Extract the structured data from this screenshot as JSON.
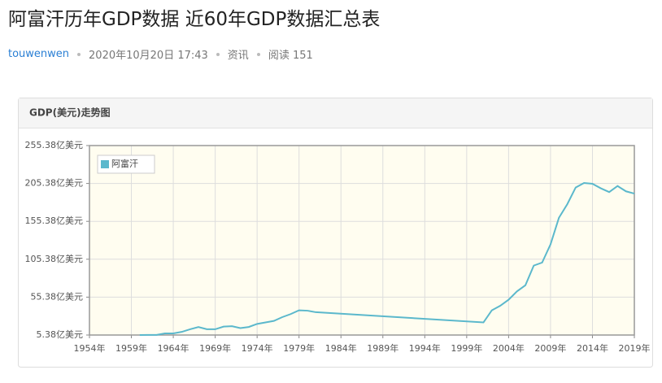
{
  "header": {
    "title": "阿富汗历年GDP数据 近60年GDP数据汇总表",
    "author": "touwenwen",
    "date": "2020年10月20日 17:43",
    "category": "资讯",
    "views": "阅读 151"
  },
  "chart_data": {
    "type": "line",
    "title": "GDP(美元)走势图",
    "x": [
      1960,
      1961,
      1962,
      1963,
      1964,
      1965,
      1966,
      1967,
      1968,
      1969,
      1970,
      1971,
      1972,
      1973,
      1974,
      1975,
      1976,
      1977,
      1978,
      1979,
      1980,
      1981,
      2001,
      2002,
      2003,
      2004,
      2005,
      2006,
      2007,
      2008,
      2009,
      2010,
      2011,
      2012,
      2013,
      2014,
      2015,
      2016,
      2017,
      2018,
      2019
    ],
    "series": [
      {
        "name": "阿富汗",
        "color": "#5bb8cc",
        "values": [
          5.4,
          5.5,
          5.5,
          7.5,
          7.5,
          9.5,
          13,
          16,
          13,
          13,
          16.5,
          17,
          14.5,
          16,
          20,
          22,
          24,
          29,
          33,
          38,
          37.5,
          35.5,
          22,
          38,
          44,
          52,
          63,
          71,
          97,
          101,
          125,
          160,
          178,
          200,
          206,
          205,
          199,
          194,
          202,
          195,
          192
        ]
      }
    ],
    "xlim": [
      1954,
      2019
    ],
    "xticks": [
      {
        "value": 1954,
        "label": "1954年"
      },
      {
        "value": 1959,
        "label": "1959年"
      },
      {
        "value": 1964,
        "label": "1964年"
      },
      {
        "value": 1969,
        "label": "1969年"
      },
      {
        "value": 1974,
        "label": "1974年"
      },
      {
        "value": 1979,
        "label": "1979年"
      },
      {
        "value": 1984,
        "label": "1984年"
      },
      {
        "value": 1989,
        "label": "1989年"
      },
      {
        "value": 1994,
        "label": "1994年"
      },
      {
        "value": 1999,
        "label": "1999年"
      },
      {
        "value": 2004,
        "label": "2004年"
      },
      {
        "value": 2009,
        "label": "2009年"
      },
      {
        "value": 2014,
        "label": "2014年"
      },
      {
        "value": 2019,
        "label": "2019年"
      }
    ],
    "ylim": [
      5.38,
      255.38
    ],
    "yticks": [
      {
        "value": 5.38,
        "label": "5.38亿美元"
      },
      {
        "value": 55.38,
        "label": "55.38亿美元"
      },
      {
        "value": 105.38,
        "label": "105.38亿美元"
      },
      {
        "value": 155.38,
        "label": "155.38亿美元"
      },
      {
        "value": 205.38,
        "label": "205.38亿美元"
      },
      {
        "value": 255.38,
        "label": "255.38亿美元"
      }
    ],
    "grid": true,
    "legend": "top-left",
    "background": "#fffdf0"
  }
}
